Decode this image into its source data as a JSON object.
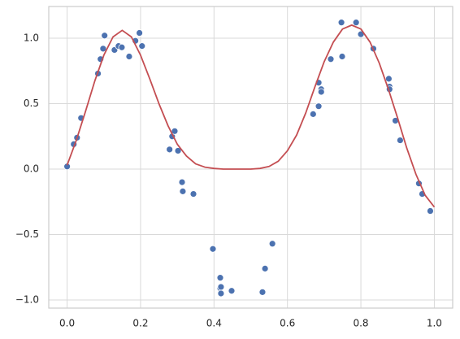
{
  "chart_data": {
    "type": "scatter",
    "xlim": [
      -0.05,
      1.05
    ],
    "ylim": [
      -1.062,
      1.242
    ],
    "grid": true,
    "xticks": [
      {
        "value": 0,
        "label": "0.0"
      },
      {
        "value": 0.2,
        "label": "0.2"
      },
      {
        "value": 0.4,
        "label": "0.4"
      },
      {
        "value": 0.6,
        "label": "0.6"
      },
      {
        "value": 0.8,
        "label": "0.8"
      },
      {
        "value": 1,
        "label": "1.0"
      }
    ],
    "yticks": [
      {
        "value": -1,
        "label": "−1.0"
      },
      {
        "value": -0.5,
        "label": "−0.5"
      },
      {
        "value": 0,
        "label": "0.0"
      },
      {
        "value": 0.5,
        "label": "0.5"
      },
      {
        "value": 1,
        "label": "1.0"
      }
    ],
    "series": [
      {
        "type": "scatter",
        "color": "#4c72b0",
        "x": [
          0.0,
          0.018,
          0.027,
          0.038,
          0.084,
          0.091,
          0.098,
          0.102,
          0.129,
          0.14,
          0.149,
          0.169,
          0.186,
          0.197,
          0.204,
          0.279,
          0.286,
          0.293,
          0.302,
          0.313,
          0.315,
          0.344,
          0.397,
          0.417,
          0.417,
          0.419,
          0.419,
          0.448,
          0.532,
          0.539,
          0.559,
          0.67,
          0.685,
          0.685,
          0.692,
          0.692,
          0.718,
          0.747,
          0.749,
          0.787,
          0.8,
          0.834,
          0.876,
          0.878,
          0.878,
          0.894,
          0.907,
          0.958,
          0.967,
          0.989
        ],
        "values": [
          0.02,
          0.19,
          0.24,
          0.39,
          0.73,
          0.84,
          0.92,
          1.02,
          0.91,
          0.94,
          0.93,
          0.86,
          0.98,
          1.04,
          0.94,
          0.15,
          0.25,
          0.29,
          0.14,
          -0.1,
          -0.17,
          -0.19,
          -0.61,
          -0.83,
          -0.91,
          -0.9,
          -0.95,
          -0.93,
          -0.94,
          -0.76,
          -0.57,
          0.42,
          0.66,
          0.48,
          0.61,
          0.59,
          0.84,
          1.12,
          0.86,
          1.12,
          1.03,
          0.92,
          0.69,
          0.63,
          0.61,
          0.37,
          0.22,
          -0.11,
          -0.19,
          -0.32
        ]
      },
      {
        "type": "line",
        "color": "#c44e52",
        "x": [
          0,
          0.025,
          0.05,
          0.075,
          0.1,
          0.125,
          0.15,
          0.175,
          0.2,
          0.225,
          0.25,
          0.275,
          0.3,
          0.325,
          0.35,
          0.375,
          0.4,
          0.425,
          0.45,
          0.475,
          0.5,
          0.525,
          0.55,
          0.575,
          0.6,
          0.625,
          0.65,
          0.675,
          0.7,
          0.725,
          0.75,
          0.775,
          0.8,
          0.825,
          0.85,
          0.875,
          0.9,
          0.925,
          0.95,
          0.975,
          1
        ],
        "values": [
          0.03,
          0.22,
          0.44,
          0.67,
          0.87,
          1.01,
          1.06,
          1.01,
          0.87,
          0.69,
          0.5,
          0.33,
          0.19,
          0.1,
          0.04,
          0.015,
          0.005,
          0,
          0,
          0,
          0,
          0.005,
          0.02,
          0.06,
          0.14,
          0.26,
          0.43,
          0.63,
          0.82,
          0.97,
          1.07,
          1.1,
          1.07,
          0.97,
          0.81,
          0.61,
          0.39,
          0.16,
          -0.04,
          -0.2,
          -0.29
        ]
      }
    ]
  }
}
